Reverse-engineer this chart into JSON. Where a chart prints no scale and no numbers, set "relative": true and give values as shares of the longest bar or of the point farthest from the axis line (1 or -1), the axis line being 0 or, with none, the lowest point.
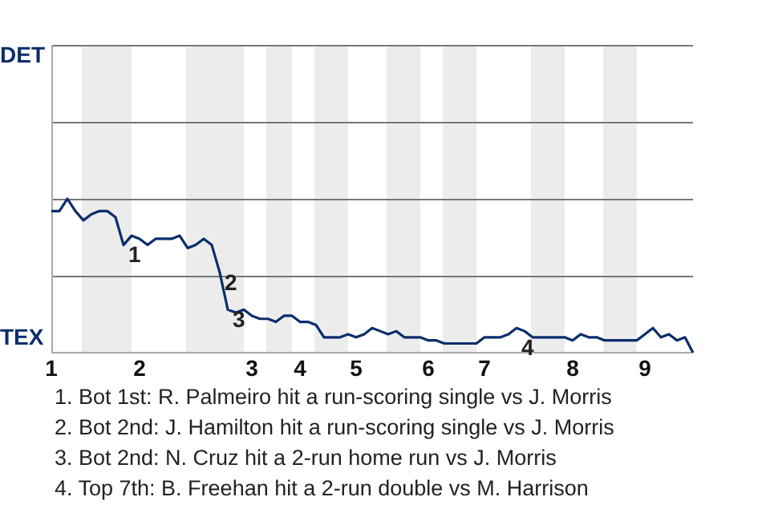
{
  "chart_data": {
    "type": "line",
    "color": "#0b2d6b",
    "relative": true,
    "categories": [
      "1",
      null,
      null,
      null,
      null,
      null,
      null,
      null,
      null,
      null,
      null,
      "2",
      null,
      null,
      null,
      null,
      null,
      null,
      null,
      null,
      null,
      null,
      null,
      null,
      null,
      "3",
      null,
      null,
      null,
      null,
      null,
      "4",
      null,
      null,
      null,
      null,
      null,
      null,
      "5",
      null,
      null,
      null,
      null,
      null,
      null,
      null,
      null,
      "6",
      null,
      null,
      null,
      null,
      null,
      null,
      "7",
      null,
      null,
      null,
      null,
      null,
      null,
      null,
      null,
      null,
      null,
      "8",
      null,
      null,
      null,
      null,
      null,
      null,
      null,
      null,
      "9",
      null,
      null,
      null,
      null,
      null,
      null
    ],
    "values": [
      0.92,
      0.92,
      1,
      0.92,
      0.86,
      0.9,
      0.92,
      0.92,
      0.88,
      0.7,
      0.76,
      0.74,
      0.7,
      0.74,
      0.74,
      0.74,
      0.76,
      0.68,
      0.7,
      0.74,
      0.7,
      0.52,
      0.28,
      0.26,
      0.28,
      0.24,
      0.22,
      0.22,
      0.2,
      0.24,
      0.24,
      0.2,
      0.2,
      0.18,
      0.1,
      0.1,
      0.1,
      0.12,
      0.1,
      0.12,
      0.16,
      0.14,
      0.12,
      0.14,
      0.1,
      0.1,
      0.1,
      0.08,
      0.08,
      0.06,
      0.06,
      0.06,
      0.06,
      0.06,
      0.1,
      0.1,
      0.1,
      0.12,
      0.16,
      0.14,
      0.1,
      0.1,
      0.1,
      0.1,
      0.1,
      0.08,
      0.12,
      0.1,
      0.1,
      0.08,
      0.08,
      0.08,
      0.08,
      0.08,
      0.12,
      0.16,
      0.1,
      0.12,
      0.08,
      0.1,
      0
    ],
    "ref_lines": [
      {
        "axis": "y",
        "value": 0.5,
        "color": "#777777"
      },
      {
        "axis": "y",
        "value": 1,
        "color": "#777777"
      },
      {
        "axis": "y",
        "value": 1.5,
        "color": "#777777"
      },
      {
        "axis": "y",
        "value": 2,
        "color": "#777777"
      }
    ],
    "legend": false,
    "marker": "none",
    "line_style": "solid",
    "annotations": [
      "DET",
      "TEX",
      {
        "text": "1",
        "y": 0.7
      },
      {
        "text": "2",
        "y": 0.52
      },
      {
        "text": "3",
        "y": 0.28
      },
      {
        "text": "4",
        "y": 0.16
      },
      "1. Bot 1st: R. Palmeiro hit a run-scoring single vs J. Morris",
      "2. Bot 2nd: J. Hamilton hit a run-scoring single vs J. Morris",
      "3. Bot 2nd: N. Cruz hit a 2-run home run vs J. Morris",
      "4. Top 7th: B. Freehan hit a 2-run double vs M. Harrison"
    ]
  }
}
